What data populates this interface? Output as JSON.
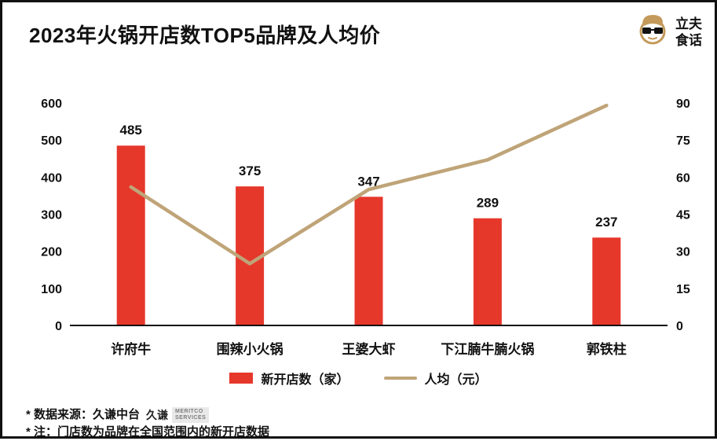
{
  "header": {
    "title": "2023年火锅开店数TOP5品牌及人均价",
    "brand": {
      "line1": "立夫",
      "line2": "食话"
    }
  },
  "chart_data": {
    "type": "bar+line",
    "title": "2023年火锅开店数TOP5品牌及人均价",
    "categories": [
      "许府牛",
      "围辣小火锅",
      "王婆大虾",
      "下江腩牛腩火锅",
      "郭铁柱"
    ],
    "series": [
      {
        "name": "新开店数（家）",
        "type": "bar",
        "axis": "left",
        "color": "#E6372B",
        "values": [
          485,
          375,
          347,
          289,
          237
        ]
      },
      {
        "name": "人均（元）",
        "type": "line",
        "axis": "right",
        "color": "#BFA478",
        "values": [
          56,
          25,
          55,
          67,
          89
        ]
      }
    ],
    "left_axis": {
      "min": 0,
      "max": 600,
      "ticks": [
        0,
        100,
        200,
        300,
        400,
        500,
        600
      ]
    },
    "right_axis": {
      "min": 0,
      "max": 90,
      "ticks": [
        0,
        15,
        30,
        45,
        60,
        75,
        90
      ]
    },
    "grid": false,
    "legend_position": "bottom"
  },
  "legend": {
    "items": [
      {
        "label": "新开店数（家）",
        "color": "#E6372B",
        "marker": "bar"
      },
      {
        "label": "人均（元）",
        "color": "#BFA478",
        "marker": "line"
      }
    ]
  },
  "footnotes": {
    "source": "* 数据来源：久谦中台",
    "source_logo": {
      "cn": "久谦",
      "en_line1": "MERITCO",
      "en_line2": "SERVICES"
    },
    "note": "* 注：门店数为品牌在全国范围内的新开店数据"
  }
}
